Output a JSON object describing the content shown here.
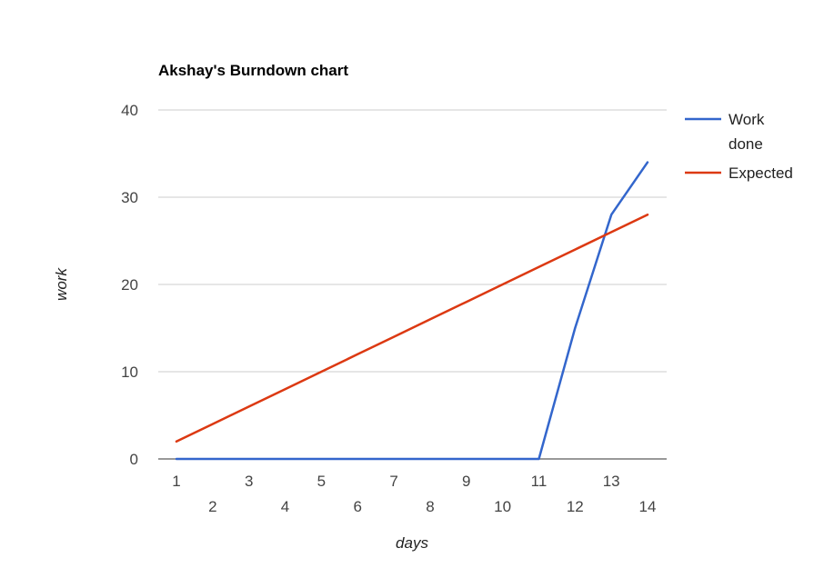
{
  "chart_data": {
    "type": "line",
    "title": "Akshay's Burndown chart",
    "xlabel": "days",
    "ylabel": "work",
    "x": [
      1,
      2,
      3,
      4,
      5,
      6,
      7,
      8,
      9,
      10,
      11,
      12,
      13,
      14
    ],
    "xlim": [
      1,
      14
    ],
    "ylim": [
      0,
      40
    ],
    "yticks": [
      0,
      10,
      20,
      30,
      40
    ],
    "grid": true,
    "legend_position": "right",
    "series": [
      {
        "name_lines": [
          "Work",
          "done"
        ],
        "color": "#3366cc",
        "values": [
          0,
          0,
          0,
          0,
          0,
          0,
          0,
          0,
          0,
          0,
          0,
          15,
          28,
          34
        ]
      },
      {
        "name_lines": [
          "Expected"
        ],
        "color": "#dc3912",
        "values": [
          2,
          4,
          6,
          8,
          10,
          12,
          14,
          16,
          18,
          20,
          22,
          24,
          26,
          28
        ]
      }
    ]
  }
}
